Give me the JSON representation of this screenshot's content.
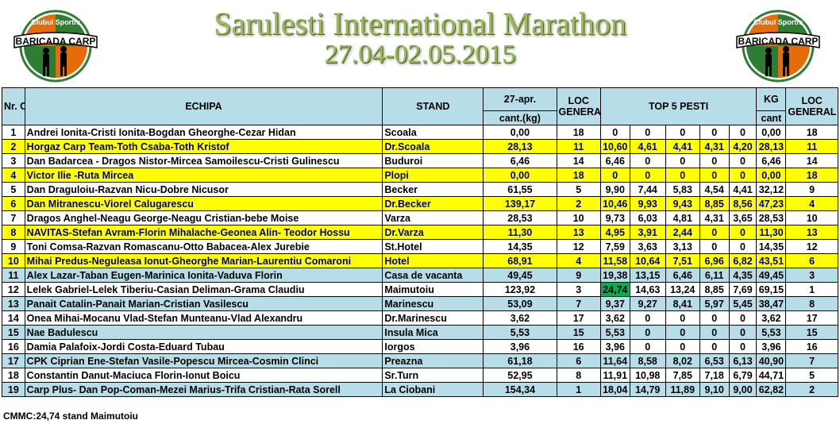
{
  "header": {
    "title": "Sarulesti International Marathon",
    "dates": "27.04-02.05.2015",
    "logo_top_text": "Clubul Sportiv",
    "logo_main_text": "BARICADA CARP"
  },
  "table": {
    "columns": {
      "nr": "Nr. Crt.",
      "echipa": "ECHIPA",
      "stand": "STAND",
      "date": "27-apr.",
      "cant": "cant.(kg)",
      "loc": "LOC GENERAL",
      "top5": "TOP 5 PESTI",
      "kg": "KG",
      "kg_sub": "cant",
      "loc2": "LOC GENERAL"
    },
    "rows": [
      {
        "nr": "1",
        "team": "Andrei Ionita-Cristi Ionita-Bogdan Gheorghe-Cezar Hidan",
        "stand": "Scoala",
        "cant": "0,00",
        "loc": "18",
        "fish": [
          "0",
          "0",
          "0",
          "0",
          "0"
        ],
        "kg": "0,00",
        "loc2": "18",
        "style": "white"
      },
      {
        "nr": "2",
        "team": "Horgaz Carp Team-Toth Csaba-Toth Kristof",
        "stand": "Dr.Scoala",
        "cant": "28,13",
        "loc": "11",
        "fish": [
          "10,60",
          "4,61",
          "4,41",
          "4,31",
          "4,20"
        ],
        "kg": "28,13",
        "loc2": "11",
        "style": "yellow"
      },
      {
        "nr": "3",
        "team": "Dan Badarcea - Dragos Nistor-Mircea Samoilescu-Cristi Gulinescu",
        "stand": "Buduroi",
        "cant": "6,46",
        "loc": "14",
        "fish": [
          "6,46",
          "0",
          "0",
          "0",
          "0"
        ],
        "kg": "6,46",
        "loc2": "14",
        "style": "white"
      },
      {
        "nr": "4",
        "team": "Victor Ilie -Ruta Mircea",
        "stand": "Plopi",
        "cant": "0,00",
        "loc": "18",
        "fish": [
          "0",
          "0",
          "0",
          "0",
          "0"
        ],
        "kg": "0,00",
        "loc2": "18",
        "style": "yellow"
      },
      {
        "nr": "5",
        "team": "Dan Draguloiu-Razvan Nicu-Dobre Nicusor",
        "stand": "Becker",
        "cant": "61,55",
        "loc": "5",
        "fish": [
          "9,90",
          "7,44",
          "5,83",
          "4,54",
          "4,41"
        ],
        "kg": "32,12",
        "loc2": "9",
        "style": "white"
      },
      {
        "nr": "6",
        "team": "Dan Mitranescu-Viorel Calugarescu",
        "stand": "Dr.Becker",
        "cant": "139,17",
        "loc": "2",
        "fish": [
          "10,46",
          "9,93",
          "9,43",
          "8,85",
          "8,56"
        ],
        "kg": "47,23",
        "loc2": "4",
        "style": "yellow"
      },
      {
        "nr": "7",
        "team": "Dragos Anghel-Neagu George-Neagu Cristian-bebe Moise",
        "stand": "Varza",
        "cant": "28,53",
        "loc": "10",
        "fish": [
          "9,73",
          "6,03",
          "4,81",
          "4,31",
          "3,65"
        ],
        "kg": "28,53",
        "loc2": "10",
        "style": "white"
      },
      {
        "nr": "8",
        "team": "NAVITAS-Stefan Avram-Florin Mihalache-Geonea Alin- Teodor Hossu",
        "stand": "Dr.Varza",
        "cant": "11,30",
        "loc": "13",
        "fish": [
          "4,95",
          "3,91",
          "2,44",
          "0",
          "0"
        ],
        "kg": "11,30",
        "loc2": "13",
        "style": "yellow"
      },
      {
        "nr": "9",
        "team": "Toni Comsa-Razvan Romascanu-Otto Babacea-Alex Jurebie",
        "stand": "St.Hotel",
        "cant": "14,35",
        "loc": "12",
        "fish": [
          "7,59",
          "3,63",
          "3,13",
          "0",
          "0"
        ],
        "kg": "14,35",
        "loc2": "12",
        "style": "white"
      },
      {
        "nr": "10",
        "team": "Mihai Predus-Neguleasa Ionut-Gheorghe Marian-Laurentiu Comaroni",
        "stand": "Hotel",
        "cant": "68,91",
        "loc": "4",
        "fish": [
          "11,58",
          "10,64",
          "7,51",
          "6,96",
          "6,82"
        ],
        "kg": "43,51",
        "loc2": "6",
        "style": "yellow"
      },
      {
        "nr": "11",
        "team": "Alex Lazar-Taban Eugen-Marinica Ionita-Vaduva Florin",
        "stand": "Casa de vacanta",
        "cant": "49,45",
        "loc": "9",
        "fish": [
          "19,38",
          "13,15",
          "6,46",
          "6,11",
          "4,35"
        ],
        "kg": "49,45",
        "loc2": "3",
        "style": "blue"
      },
      {
        "nr": "12",
        "team": "Lelek Gabriel-Lelek Tiberiu-Casian Deliman-Grama Claudiu",
        "stand": "Maimutoiu",
        "cant": "123,92",
        "loc": "3",
        "fish": [
          "24,74",
          "14,63",
          "13,24",
          "8,85",
          "7,69"
        ],
        "kg": "69,15",
        "loc2": "1",
        "style": "white"
      },
      {
        "nr": "13",
        "team": "Panait Catalin-Panait Marian-Cristian Vasilescu",
        "stand": "Marinescu",
        "cant": "53,09",
        "loc": "7",
        "fish": [
          "9,37",
          "9,27",
          "8,41",
          "5,97",
          "5,45"
        ],
        "kg": "38,47",
        "loc2": "8",
        "style": "blue"
      },
      {
        "nr": "14",
        "team": "Onea Mihai-Mocanu Vlad-Stefan Munteanu-Vlad Alexandru",
        "stand": "Dr.Marinescu",
        "cant": "3,62",
        "loc": "17",
        "fish": [
          "3,62",
          "0",
          "0",
          "0",
          "0"
        ],
        "kg": "3,62",
        "loc2": "17",
        "style": "white"
      },
      {
        "nr": "15",
        "team": "Nae Badulescu",
        "stand": "Insula Mica",
        "cant": "5,53",
        "loc": "15",
        "fish": [
          "5,53",
          "0",
          "0",
          "0",
          "0"
        ],
        "kg": "5,53",
        "loc2": "15",
        "style": "blue"
      },
      {
        "nr": "16",
        "team": "Damia Palafoix-Jordi Costa-Eduard Tubau",
        "stand": "Iorgos",
        "cant": "3,96",
        "loc": "16",
        "fish": [
          "3,96",
          "0",
          "0",
          "0",
          "0"
        ],
        "kg": "3,96",
        "loc2": "16",
        "style": "white"
      },
      {
        "nr": "17",
        "team": "CPK Ciprian Ene-Stefan Vasile-Popescu Mircea-Cosmin Clinci",
        "stand": "Preazna",
        "cant": "61,18",
        "loc": "6",
        "fish": [
          "11,64",
          "8,58",
          "8,02",
          "6,53",
          "6,13"
        ],
        "kg": "40,90",
        "loc2": "7",
        "style": "blue"
      },
      {
        "nr": "18",
        "team": "Constantin Danut-Maciuca Florin-Ionut Boicu",
        "stand": "Sr.Turn",
        "cant": "52,95",
        "loc": "8",
        "fish": [
          "11,91",
          "10,98",
          "7,85",
          "7,18",
          "6,79"
        ],
        "kg": "44,71",
        "loc2": "5",
        "style": "white"
      },
      {
        "nr": "19",
        "team": "Carp Plus- Dan Pop-Coman-Mezei Marius-Trifa Cristian-Rata Sorell",
        "stand": "La Ciobani",
        "cant": "154,34",
        "loc": "1",
        "fish": [
          "18,04",
          "14,79",
          "11,89",
          "9,10",
          "9,00"
        ],
        "kg": "62,82",
        "loc2": "2",
        "style": "blue"
      }
    ],
    "highlight": {
      "row": 11,
      "fish": 0,
      "color": "#00b050"
    }
  },
  "footer": {
    "cmmc": "CMMC:24,74 stand Maimutoiu"
  },
  "colors": {
    "header_bg": "#b7dee8",
    "yellow_row": "#ffff00",
    "blue_row": "#b7dee8",
    "highlight": "#00b050",
    "title": "#9bbb59"
  }
}
